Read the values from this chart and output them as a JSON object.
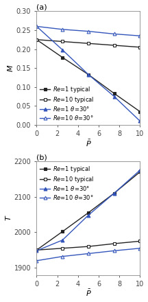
{
  "subplot_a": {
    "title": "(a)",
    "ylabel": "M",
    "xlabel": "$\\bar{P}$",
    "ylim": [
      0.0,
      0.3
    ],
    "xlim": [
      0,
      10
    ],
    "yticks": [
      0.0,
      0.05,
      0.1,
      0.15,
      0.2,
      0.25,
      0.3
    ],
    "xticks": [
      0,
      2,
      4,
      6,
      8,
      10
    ],
    "legend_loc": "lower left",
    "series": [
      {
        "label": "Re=1 typical",
        "x": [
          0,
          2.5,
          5,
          7.5,
          10
        ],
        "y": [
          0.225,
          0.178,
          0.133,
          0.083,
          0.035
        ],
        "color": "#222222",
        "marker": "s",
        "fillstyle": "full",
        "linestyle": "-"
      },
      {
        "label": "Re=10 typical",
        "x": [
          0,
          2.5,
          5,
          7.5,
          10
        ],
        "y": [
          0.225,
          0.22,
          0.215,
          0.21,
          0.205
        ],
        "color": "#222222",
        "marker": "s",
        "fillstyle": "none",
        "linestyle": "-"
      },
      {
        "label": "Re=1 θ=30°",
        "x": [
          0,
          2.5,
          5,
          7.5,
          10
        ],
        "y": [
          0.26,
          0.198,
          0.133,
          0.075,
          0.01
        ],
        "color": "#3355bb",
        "marker": "^",
        "fillstyle": "full",
        "linestyle": "-"
      },
      {
        "label": "Re=10 θ=30°",
        "x": [
          0,
          2.5,
          5,
          7.5,
          10
        ],
        "y": [
          0.26,
          0.252,
          0.247,
          0.24,
          0.235
        ],
        "color": "#3355bb",
        "marker": "^",
        "fillstyle": "none",
        "linestyle": "-"
      }
    ]
  },
  "subplot_b": {
    "title": "(b)",
    "ylabel": "T",
    "xlabel": "$\\bar{P}$",
    "ylim": [
      1880,
      2200
    ],
    "xlim": [
      0,
      10
    ],
    "yticks": [
      1900,
      2000,
      2100,
      2200
    ],
    "xticks": [
      0,
      2,
      4,
      6,
      8,
      10
    ],
    "legend_loc": "upper left",
    "series": [
      {
        "label": "Re=1 typical",
        "x": [
          0,
          2.5,
          5,
          7.5,
          10
        ],
        "y": [
          1950,
          2002,
          2055,
          2110,
          2170
        ],
        "color": "#222222",
        "marker": "s",
        "fillstyle": "full",
        "linestyle": "-"
      },
      {
        "label": "Re=10 typical",
        "x": [
          0,
          2.5,
          5,
          7.5,
          10
        ],
        "y": [
          1950,
          1955,
          1960,
          1968,
          1975
        ],
        "color": "#222222",
        "marker": "s",
        "fillstyle": "none",
        "linestyle": "-"
      },
      {
        "label": "Re=1 θ=30°",
        "x": [
          0,
          2.5,
          5,
          7.5,
          10
        ],
        "y": [
          1948,
          1978,
          2048,
          2110,
          2175
        ],
        "color": "#3355bb",
        "marker": "^",
        "fillstyle": "full",
        "linestyle": "-"
      },
      {
        "label": "Re=10 θ=30°",
        "x": [
          0,
          2.5,
          5,
          7.5,
          10
        ],
        "y": [
          1920,
          1932,
          1940,
          1948,
          1955
        ],
        "color": "#3355bb",
        "marker": "^",
        "fillstyle": "none",
        "linestyle": "-"
      }
    ]
  },
  "bg_color": "#ffffff",
  "title_fontsize": 8,
  "label_fontsize": 8,
  "tick_fontsize": 7,
  "legend_fontsize": 6,
  "linewidth": 1.0,
  "markersize": 3.5
}
